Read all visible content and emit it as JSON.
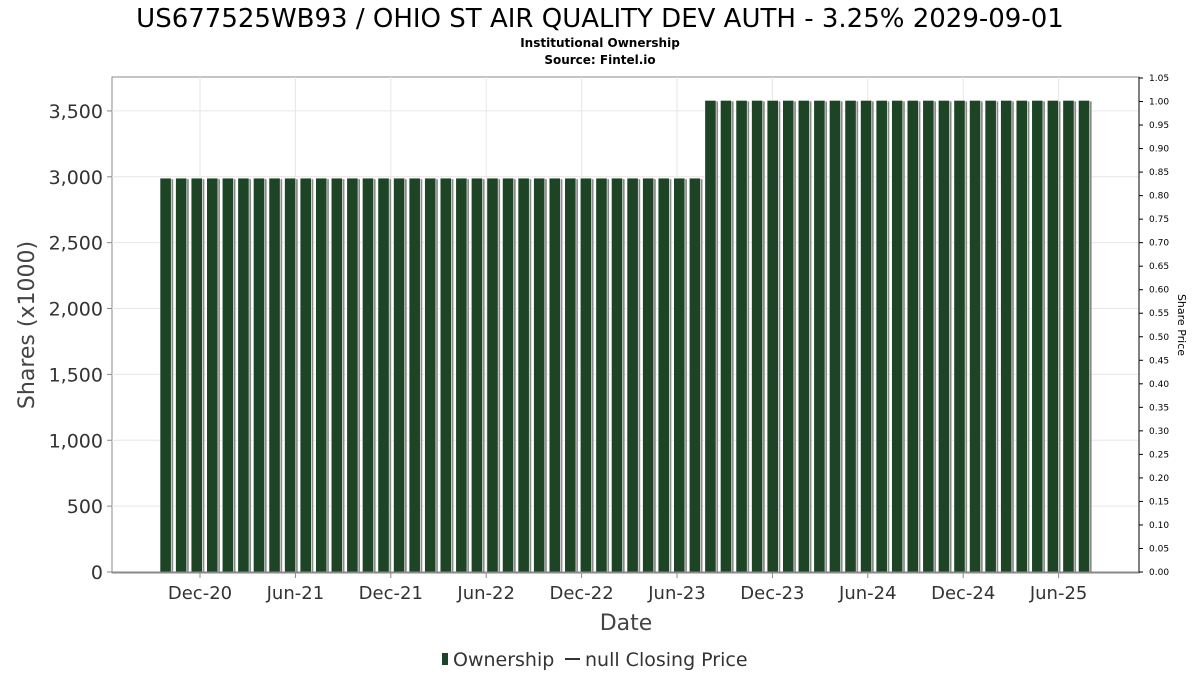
{
  "title": "US677525WB93 / OHIO ST AIR QUALITY DEV AUTH - 3.25% 2029-09-01",
  "subtitle": "Institutional Ownership",
  "source": "Source: Fintel.io",
  "colors": {
    "bar": "#1c4425",
    "bar_shadow": "#8a8a8a",
    "grid": "#e6e6e6",
    "frame": "#888888"
  },
  "chart_data": {
    "type": "bar",
    "xlabel": "Date",
    "ylabel": "Shares (x1000)",
    "y2label": "Share Price",
    "ylim": [
      0,
      3750
    ],
    "y_ticks": [
      0,
      500,
      1000,
      1500,
      2000,
      2500,
      3000,
      3500
    ],
    "y_tick_labels": [
      "0",
      "500",
      "1,000",
      "1,500",
      "2,000",
      "2,500",
      "3,000",
      "3,500"
    ],
    "y2lim": [
      0,
      1.05
    ],
    "y2_ticks": [
      0,
      0.05,
      0.1,
      0.15,
      0.2,
      0.25,
      0.3,
      0.35,
      0.4,
      0.45,
      0.5,
      0.55,
      0.6,
      0.65,
      0.7,
      0.75,
      0.8,
      0.85,
      0.9,
      0.95,
      1.0,
      1.05
    ],
    "y2_tick_labels": [
      "0.00",
      "0.05",
      "0.10",
      "0.15",
      "0.20",
      "0.25",
      "0.30",
      "0.35",
      "0.40",
      "0.45",
      "0.50",
      "0.55",
      "0.60",
      "0.65",
      "0.70",
      "0.75",
      "0.80",
      "0.85",
      "0.90",
      "0.95",
      "1.00",
      "1.05"
    ],
    "x_tick_labels": [
      "Dec-20",
      "Jun-21",
      "Dec-21",
      "Jun-22",
      "Dec-22",
      "Jun-23",
      "Dec-23",
      "Jun-24",
      "Dec-24",
      "Jun-25"
    ],
    "grid": true,
    "legend_position": "bottom",
    "series": [
      {
        "name": "Ownership",
        "values": [
          2990,
          2990,
          2990,
          2990,
          2990,
          2990,
          2990,
          2990,
          2990,
          2990,
          2990,
          2990,
          2990,
          2990,
          2990,
          2990,
          2990,
          2990,
          2990,
          2990,
          2990,
          2990,
          2990,
          2990,
          2990,
          2990,
          2990,
          2990,
          2990,
          2990,
          2990,
          2990,
          2990,
          2990,
          2990,
          3580,
          3580,
          3580,
          3580,
          3580,
          3580,
          3580,
          3580,
          3580,
          3580,
          3580,
          3580,
          3580,
          3580,
          3580,
          3580,
          3580,
          3580,
          3580,
          3580,
          3580,
          3580,
          3580,
          3580,
          3580
        ]
      },
      {
        "name": "null Closing Price",
        "values": []
      }
    ]
  }
}
